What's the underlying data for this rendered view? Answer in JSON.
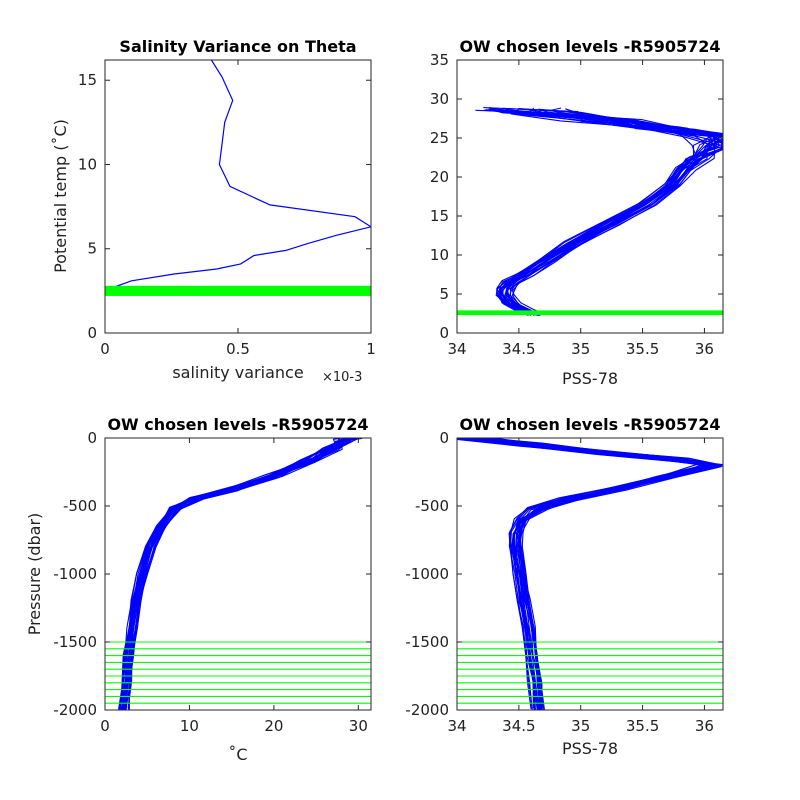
{
  "chart_data": [
    {
      "type": "line",
      "title": "Salinity Variance on Theta",
      "xlabel": "salinity variance",
      "xlabel_exponent": "×10-3",
      "ylabel": "Potential temp (˚C)",
      "xlim": [
        0,
        1
      ],
      "ylim": [
        0,
        16.2
      ],
      "x_ticks": [
        0,
        0.5,
        1
      ],
      "x_tick_labels": [
        "0",
        "0.5",
        "1"
      ],
      "y_ticks": [
        0,
        5,
        10,
        15
      ],
      "y_tick_labels": [
        "0",
        "5",
        "10",
        "15"
      ],
      "series": [
        {
          "color": "#0000ff",
          "points": [
            [
              0.03,
              2.7
            ],
            [
              0.1,
              3.1
            ],
            [
              0.26,
              3.5
            ],
            [
              0.42,
              3.8
            ],
            [
              0.51,
              4.1
            ],
            [
              0.56,
              4.6
            ],
            [
              0.68,
              4.9
            ],
            [
              0.76,
              5.3
            ],
            [
              0.87,
              5.8
            ],
            [
              1.0,
              6.3
            ],
            [
              0.94,
              6.9
            ],
            [
              0.62,
              7.6
            ],
            [
              0.47,
              8.7
            ],
            [
              0.43,
              10.0
            ],
            [
              0.44,
              11.2
            ],
            [
              0.45,
              12.5
            ],
            [
              0.48,
              13.8
            ],
            [
              0.44,
              15.2
            ],
            [
              0.4,
              16.2
            ]
          ]
        }
      ],
      "highlight_band": {
        "color": "#00ff00",
        "y": [
          2.2,
          2.8
        ]
      }
    },
    {
      "type": "line",
      "title": "OW chosen levels -R5905724",
      "xlabel": "PSS-78",
      "ylabel": "",
      "xlim": [
        34,
        36.15
      ],
      "ylim": [
        0,
        35
      ],
      "x_ticks": [
        34,
        34.5,
        35,
        35.5,
        36
      ],
      "x_tick_labels": [
        "34",
        "34.5",
        "35",
        "35.5",
        "36"
      ],
      "y_ticks": [
        0,
        5,
        10,
        15,
        20,
        25,
        30,
        35
      ],
      "y_tick_labels": [
        "0",
        "5",
        "10",
        "15",
        "20",
        "25",
        "30",
        "35"
      ],
      "profile_bundle": {
        "color": "#0000ff",
        "count": 26,
        "base": [
          [
            34.62,
            2.4
          ],
          [
            34.55,
            3.0
          ],
          [
            34.45,
            3.8
          ],
          [
            34.4,
            4.8
          ],
          [
            34.4,
            5.6
          ],
          [
            34.45,
            6.5
          ],
          [
            34.55,
            7.5
          ],
          [
            34.72,
            9.2
          ],
          [
            34.95,
            11.5
          ],
          [
            35.25,
            14.0
          ],
          [
            35.55,
            16.5
          ],
          [
            35.75,
            19.0
          ],
          [
            35.85,
            21.0
          ],
          [
            35.95,
            22.5
          ],
          [
            36.1,
            24.0
          ],
          [
            36.05,
            25.3
          ],
          [
            35.7,
            26.3
          ],
          [
            35.2,
            27.3
          ],
          [
            34.75,
            28.2
          ],
          [
            34.55,
            28.7
          ]
        ],
        "spread": 0.14,
        "top_spread": 1.3
      },
      "highlight_band": {
        "color": "#00ff00",
        "y": [
          2.3,
          2.9
        ]
      }
    },
    {
      "type": "line",
      "title": "OW chosen levels -R5905724",
      "xlabel": "˚C",
      "ylabel": "Pressure (dbar)",
      "xlim": [
        0,
        31.5
      ],
      "ylim": [
        -2000,
        0
      ],
      "x_ticks": [
        0,
        10,
        20,
        30
      ],
      "x_tick_labels": [
        "0",
        "10",
        "20",
        "30"
      ],
      "y_ticks": [
        -2000,
        -1500,
        -1000,
        -500,
        0
      ],
      "y_tick_labels": [
        "-2000",
        "-1500",
        "-1000",
        "-500",
        "0"
      ],
      "profile_bundle": {
        "color": "#0000ff",
        "count": 26,
        "base": [
          [
            2.3,
            -2000
          ],
          [
            2.6,
            -1800
          ],
          [
            2.9,
            -1600
          ],
          [
            3.3,
            -1400
          ],
          [
            3.8,
            -1200
          ],
          [
            4.5,
            -1000
          ],
          [
            5.5,
            -800
          ],
          [
            6.8,
            -650
          ],
          [
            8.2,
            -520
          ],
          [
            11.0,
            -440
          ],
          [
            15.0,
            -380
          ],
          [
            20.0,
            -280
          ],
          [
            24.0,
            -170
          ],
          [
            27.0,
            -80
          ],
          [
            28.5,
            -20
          ],
          [
            29.0,
            0
          ]
        ],
        "spread": 1.2,
        "top_spread": 2.2
      },
      "chosen_levels": {
        "color": "#00ff00",
        "pressures": [
          -1500,
          -1550,
          -1600,
          -1650,
          -1700,
          -1750,
          -1800,
          -1850,
          -1900,
          -1950,
          -2000
        ]
      }
    },
    {
      "type": "line",
      "title": "OW chosen levels -R5905724",
      "xlabel": "PSS-78",
      "ylabel": "",
      "xlim": [
        34,
        36.15
      ],
      "ylim": [
        -2000,
        0
      ],
      "x_ticks": [
        34,
        34.5,
        35,
        35.5,
        36
      ],
      "x_tick_labels": [
        "34",
        "34.5",
        "35",
        "35.5",
        "36"
      ],
      "y_ticks": [
        -2000,
        -1500,
        -1000,
        -500,
        0
      ],
      "y_tick_labels": [
        "-2000",
        "-1500",
        "-1000",
        "-500",
        "0"
      ],
      "profile_bundle": {
        "color": "#0000ff",
        "count": 26,
        "base": [
          [
            34.65,
            -2000
          ],
          [
            34.63,
            -1800
          ],
          [
            34.6,
            -1600
          ],
          [
            34.57,
            -1400
          ],
          [
            34.53,
            -1200
          ],
          [
            34.5,
            -1000
          ],
          [
            34.47,
            -800
          ],
          [
            34.47,
            -700
          ],
          [
            34.52,
            -600
          ],
          [
            34.65,
            -520
          ],
          [
            34.9,
            -450
          ],
          [
            35.3,
            -370
          ],
          [
            35.7,
            -280
          ],
          [
            36.05,
            -200
          ],
          [
            35.8,
            -160
          ],
          [
            35.2,
            -110
          ],
          [
            34.6,
            -50
          ],
          [
            34.1,
            0
          ]
        ],
        "spread": 0.1,
        "top_spread": 0.2
      },
      "chosen_levels": {
        "color": "#00ff00",
        "pressures": [
          -1500,
          -1550,
          -1600,
          -1650,
          -1700,
          -1750,
          -1800,
          -1850,
          -1900,
          -1950,
          -2000
        ]
      }
    }
  ]
}
